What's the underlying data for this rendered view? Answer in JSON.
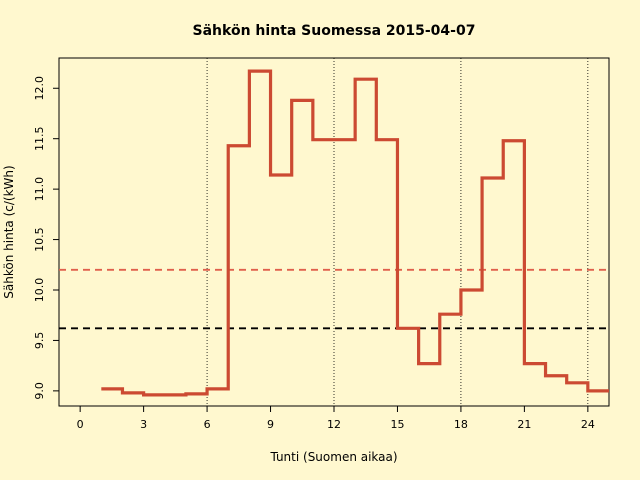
{
  "chart_data": {
    "type": "line",
    "step": true,
    "title": "Sähkön hinta Suomessa 2015-04-07",
    "xlabel": "Tunti (Suomen aikaa)",
    "ylabel": "Sähkön hinta (c/(kWh)",
    "xlim": [
      -1,
      25
    ],
    "ylim": [
      8.85,
      12.3
    ],
    "x_ticks": [
      0,
      3,
      6,
      9,
      12,
      15,
      18,
      21,
      24
    ],
    "y_ticks": [
      9.0,
      9.5,
      10.0,
      10.5,
      11.0,
      11.5,
      12.0
    ],
    "y_tick_labels": [
      "9.0",
      "9.5",
      "10.0",
      "10.5",
      "11.0",
      "11.5",
      "12.0"
    ],
    "vertical_reference_lines": [
      6,
      12,
      18,
      24
    ],
    "series": [
      {
        "color": "#cc4a32",
        "x": [
          1,
          2,
          3,
          4,
          5,
          6,
          7,
          8,
          9,
          10,
          11,
          12,
          13,
          14,
          15,
          16,
          17,
          18,
          19,
          20,
          21,
          22,
          23,
          24,
          25
        ],
        "y": [
          9.02,
          8.98,
          8.96,
          8.96,
          8.97,
          9.02,
          11.43,
          12.17,
          11.14,
          11.88,
          11.49,
          11.49,
          12.09,
          11.49,
          9.62,
          9.27,
          9.76,
          10.0,
          11.11,
          11.48,
          9.27,
          9.15,
          9.08,
          9.0,
          9.0
        ]
      }
    ],
    "reference_lines": [
      {
        "y": 10.2,
        "color": "#e0604c",
        "style": "dashed"
      },
      {
        "y": 9.62,
        "color": "#000000",
        "style": "dashed"
      }
    ],
    "grid": false
  }
}
